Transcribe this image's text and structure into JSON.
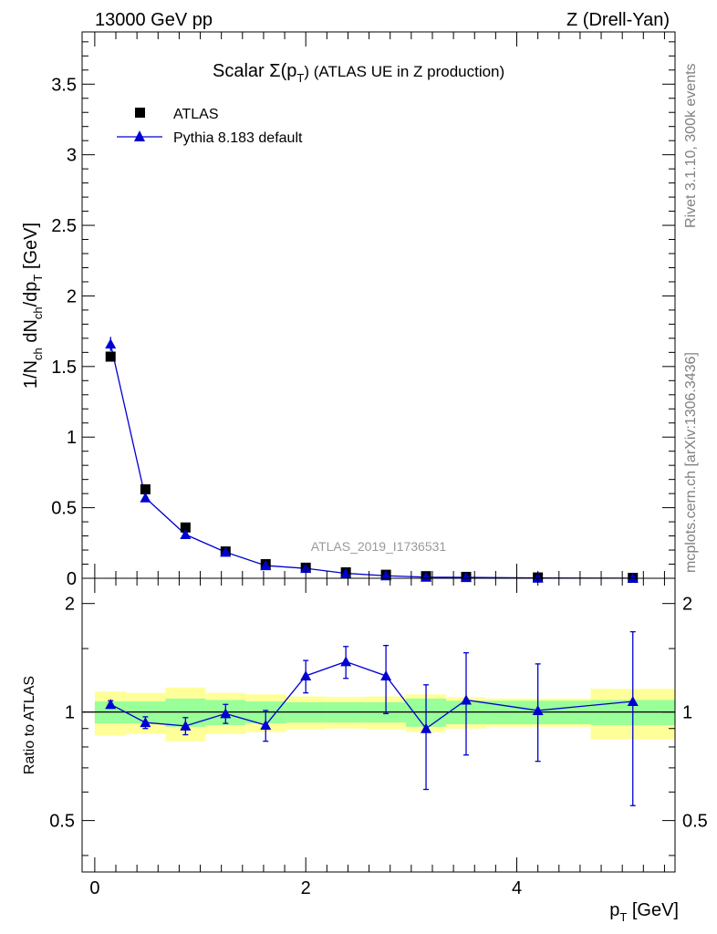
{
  "header": {
    "left": "13000 GeV pp",
    "right": "Z (Drell-Yan)"
  },
  "side": {
    "rivet": "Rivet 3.1.10,  300k events",
    "mcplots": "mcplots.cern.ch [arXiv:1306.3436]"
  },
  "colors": {
    "data": "#000000",
    "mc": "#0000d0",
    "band_inner": "#99ff99",
    "band_outer": "#ffff99"
  },
  "chart_data": [
    {
      "type": "scatter",
      "title_main": "Scalar Σ(p",
      "title_sub": "T",
      "title_end": ") (ATLAS UE in Z production)",
      "ylabel_parts": [
        "1/N",
        "ch",
        " dN",
        "ch",
        "/dp",
        "T",
        " [GeV]"
      ],
      "watermark": "ATLAS_2019_I1736531",
      "ylim": [
        0,
        3.87
      ],
      "xlim": [
        -0.12,
        5.5
      ],
      "yticks": [
        "0",
        "0.5",
        "1",
        "1.5",
        "2",
        "2.5",
        "3",
        "3.5"
      ],
      "legend": {
        "placement": "top-left",
        "data_label": "ATLAS",
        "mc_label": "Pythia 8.183 default"
      },
      "series": [
        {
          "name": "ATLAS",
          "x": [
            0.15,
            0.48,
            0.86,
            1.24,
            1.62,
            2.0,
            2.38,
            2.76,
            3.14,
            3.52,
            4.2,
            5.1
          ],
          "y": [
            1.57,
            0.63,
            0.36,
            0.19,
            0.1,
            0.075,
            0.042,
            0.025,
            0.015,
            0.01,
            0.006,
            0.003
          ]
        },
        {
          "name": "Pythia 8.183 default",
          "x": [
            0.15,
            0.48,
            0.86,
            1.24,
            1.62,
            2.0,
            2.38,
            2.76,
            3.14,
            3.52,
            4.2,
            5.1
          ],
          "y": [
            1.66,
            0.57,
            0.31,
            0.185,
            0.09,
            0.07,
            0.035,
            0.018,
            0.008,
            0.006,
            0.002,
            0.001
          ],
          "yerr": [
            0.05,
            0.02,
            0.012,
            0.01,
            0.006,
            0.005,
            0.004,
            0.003,
            0.002,
            0.002,
            0.001,
            0.001
          ]
        }
      ]
    },
    {
      "type": "scatter",
      "ylabel": "Ratio to ATLAS",
      "xlabel_main": "p",
      "xlabel_sub": "T",
      "xlabel_end": " [GeV]",
      "ylim": [
        0.36,
        2.35
      ],
      "xlim": [
        -0.12,
        5.5
      ],
      "yticks": [
        "0.5",
        "1",
        "2"
      ],
      "xticks": [
        "0",
        "2",
        "4"
      ],
      "bands": {
        "edges": [
          0,
          0.3,
          0.67,
          1.05,
          1.43,
          1.81,
          2.19,
          2.57,
          2.95,
          3.33,
          3.71,
          4.7,
          5.5
        ],
        "inner_lo": [
          0.93,
          0.93,
          0.91,
          0.92,
          0.93,
          0.935,
          0.935,
          0.935,
          0.91,
          0.925,
          0.925,
          0.92
        ],
        "inner_hi": [
          1.07,
          1.07,
          1.09,
          1.08,
          1.07,
          1.065,
          1.065,
          1.065,
          1.09,
          1.075,
          1.075,
          1.08
        ],
        "outer_lo": [
          0.86,
          0.87,
          0.83,
          0.87,
          0.88,
          0.895,
          0.9,
          0.895,
          0.88,
          0.9,
          0.91,
          0.84
        ],
        "outer_hi": [
          1.14,
          1.13,
          1.17,
          1.13,
          1.12,
          1.105,
          1.1,
          1.105,
          1.12,
          1.1,
          1.09,
          1.16
        ]
      },
      "series": [
        {
          "name": "Pythia 8.183 default / ATLAS",
          "x": [
            0.15,
            0.48,
            0.86,
            1.24,
            1.62,
            2.0,
            2.38,
            2.76,
            3.14,
            3.52,
            4.2,
            5.1
          ],
          "y": [
            1.05,
            0.935,
            0.915,
            0.99,
            0.92,
            1.26,
            1.38,
            1.26,
            0.9,
            1.08,
            1.01,
            1.07
          ],
          "yerr_lo": [
            0.025,
            0.035,
            0.05,
            0.06,
            0.09,
            0.13,
            0.14,
            0.27,
            0.29,
            0.32,
            0.28,
            0.52
          ],
          "yerr_hi": [
            0.025,
            0.035,
            0.05,
            0.06,
            0.09,
            0.13,
            0.14,
            0.27,
            0.29,
            0.38,
            0.35,
            0.6
          ]
        }
      ]
    }
  ]
}
